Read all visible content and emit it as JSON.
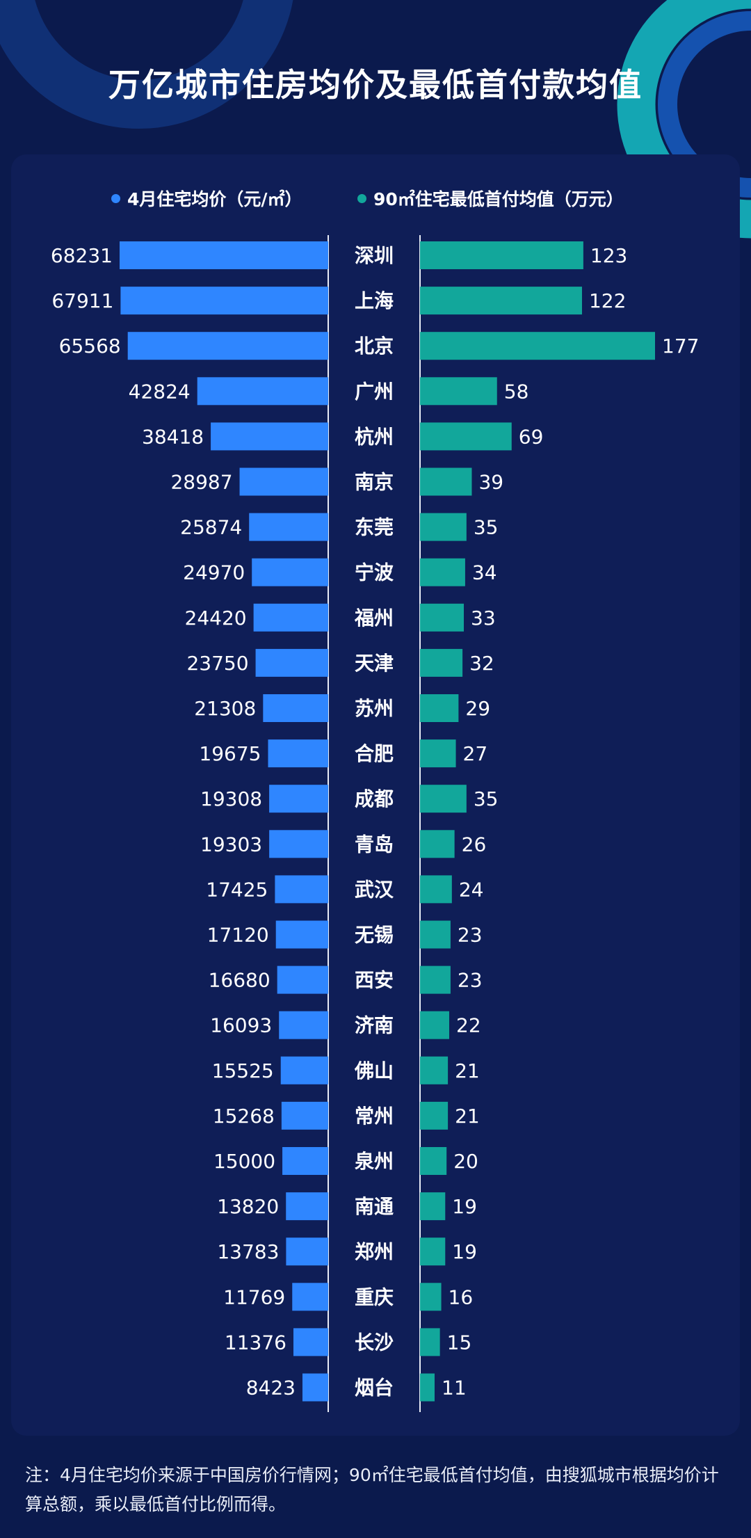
{
  "title": "万亿城市住房均价及最低首付款均值",
  "legend": {
    "left": "4月住宅均价（元/㎡）",
    "right": "90㎡住宅最低首付均值（万元）"
  },
  "colors": {
    "background": "#0b1a4d",
    "panel": "#0f1e57",
    "left_bar": "#2f86ff",
    "right_bar": "#12a79b",
    "text": "#ffffff"
  },
  "chart_data": {
    "type": "bar",
    "orientation": "horizontal-butterfly",
    "categories": [
      "深圳",
      "上海",
      "北京",
      "广州",
      "杭州",
      "南京",
      "东莞",
      "宁波",
      "福州",
      "天津",
      "苏州",
      "合肥",
      "成都",
      "青岛",
      "武汉",
      "无锡",
      "西安",
      "济南",
      "佛山",
      "常州",
      "泉州",
      "南通",
      "郑州",
      "重庆",
      "长沙",
      "烟台"
    ],
    "series": [
      {
        "name": "4月住宅均价（元/㎡）",
        "values": [
          68231,
          67911,
          65568,
          42824,
          38418,
          28987,
          25874,
          24970,
          24420,
          23750,
          21308,
          19675,
          19308,
          19303,
          17425,
          17120,
          16680,
          16093,
          15525,
          15268,
          15000,
          13820,
          13783,
          11769,
          11376,
          8423
        ]
      },
      {
        "name": "90㎡住宅最低首付均值（万元）",
        "values": [
          123,
          122,
          177,
          58,
          69,
          39,
          35,
          34,
          33,
          32,
          29,
          27,
          35,
          26,
          24,
          23,
          23,
          22,
          21,
          21,
          20,
          19,
          19,
          16,
          15,
          11
        ]
      }
    ]
  },
  "footnote": "注：4月住宅均价来源于中国房价行情网；90㎡住宅最低首付均值，由搜狐城市根据均价计算总额，乘以最低首付比例而得。"
}
